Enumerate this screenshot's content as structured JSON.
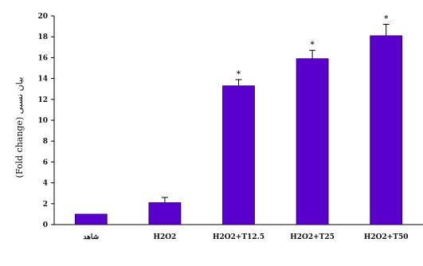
{
  "chart_data": {
    "type": "bar",
    "categories": [
      "شاهد",
      "H2O2",
      "H2O2+T12.5",
      "H2O2+T25",
      "H2O2+T50"
    ],
    "values": [
      1.0,
      2.1,
      13.3,
      15.9,
      18.1
    ],
    "errors": [
      0.0,
      0.5,
      0.6,
      0.8,
      1.1
    ],
    "significance": [
      "",
      "",
      "*",
      "*",
      "*"
    ],
    "ylabel": "(Fold change) بیان نسبی",
    "ylim": [
      0,
      20
    ],
    "yticks": [
      0,
      2,
      4,
      6,
      8,
      10,
      12,
      14,
      16,
      18,
      20
    ],
    "bar_color": "#5a00cc",
    "grid": false
  }
}
